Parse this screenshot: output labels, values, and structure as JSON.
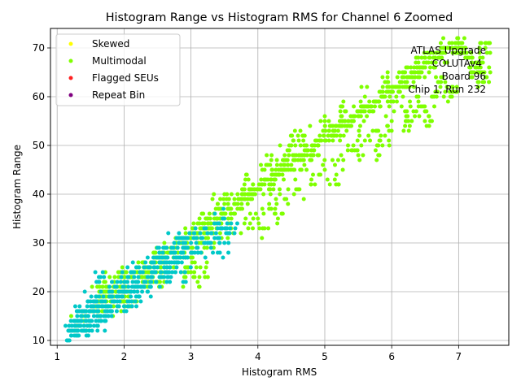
{
  "chart_data": {
    "type": "scatter",
    "title": "Histogram Range vs Histogram RMS for Channel 6 Zoomed",
    "xlabel": "Histogram RMS",
    "ylabel": "Histogram Range",
    "xlim": [
      0.9,
      7.75
    ],
    "ylim": [
      9,
      74
    ],
    "xticks": [
      1,
      2,
      3,
      4,
      5,
      6,
      7
    ],
    "yticks": [
      10,
      20,
      30,
      40,
      50,
      60,
      70
    ],
    "grid": true,
    "legend_position": "top-left",
    "annotation": [
      "ATLAS Upgrade",
      "COLUTAv4",
      "Board 96",
      "Chip 1, Run 232"
    ],
    "series": [
      {
        "name": "Skewed",
        "color": "#ffff00",
        "marker_size": 2.5,
        "points": []
      },
      {
        "name": "Multimodal",
        "color": "#7fff00",
        "marker_size": 2.5,
        "points": [
          [
            1.3,
            13
          ],
          [
            1.4,
            14
          ],
          [
            1.5,
            16
          ],
          [
            1.55,
            17
          ],
          [
            1.6,
            18
          ],
          [
            1.65,
            19
          ],
          [
            1.7,
            19
          ],
          [
            1.75,
            20
          ],
          [
            1.8,
            20
          ],
          [
            1.85,
            21
          ],
          [
            1.9,
            21
          ],
          [
            1.95,
            21
          ],
          [
            2.0,
            22
          ],
          [
            2.05,
            22
          ],
          [
            2.1,
            23
          ],
          [
            2.15,
            23
          ],
          [
            2.2,
            24
          ],
          [
            2.25,
            24
          ],
          [
            2.3,
            25
          ],
          [
            2.35,
            25
          ],
          [
            2.4,
            26
          ],
          [
            2.45,
            26
          ],
          [
            2.5,
            27
          ],
          [
            2.55,
            27
          ],
          [
            2.6,
            27
          ],
          [
            2.65,
            28
          ],
          [
            2.7,
            28
          ],
          [
            2.75,
            29
          ],
          [
            2.8,
            29
          ],
          [
            2.85,
            30
          ],
          [
            2.9,
            30
          ],
          [
            2.95,
            31
          ],
          [
            3.0,
            31
          ],
          [
            3.05,
            32
          ],
          [
            3.1,
            32
          ],
          [
            3.15,
            33
          ],
          [
            3.2,
            33
          ],
          [
            3.25,
            34
          ],
          [
            3.3,
            34
          ],
          [
            3.35,
            35
          ],
          [
            3.4,
            35
          ],
          [
            3.45,
            36
          ],
          [
            3.5,
            36
          ],
          [
            3.55,
            37
          ],
          [
            3.6,
            37
          ],
          [
            3.65,
            38
          ],
          [
            3.7,
            38
          ],
          [
            3.75,
            39
          ],
          [
            3.8,
            39
          ],
          [
            3.85,
            40
          ],
          [
            3.9,
            40
          ],
          [
            3.95,
            41
          ],
          [
            4.0,
            41
          ],
          [
            4.05,
            42
          ],
          [
            4.1,
            42
          ],
          [
            4.15,
            43
          ],
          [
            4.2,
            43
          ],
          [
            4.25,
            44
          ],
          [
            4.3,
            44
          ],
          [
            4.35,
            45
          ],
          [
            4.4,
            45
          ],
          [
            4.45,
            46
          ],
          [
            4.5,
            46
          ],
          [
            4.55,
            47
          ],
          [
            4.6,
            47
          ],
          [
            4.65,
            48
          ],
          [
            4.7,
            48
          ],
          [
            4.75,
            49
          ],
          [
            4.8,
            49
          ],
          [
            4.85,
            50
          ],
          [
            4.9,
            50
          ],
          [
            4.95,
            51
          ],
          [
            5.0,
            51
          ],
          [
            5.05,
            52
          ],
          [
            5.1,
            52
          ],
          [
            5.15,
            53
          ],
          [
            5.2,
            53
          ],
          [
            5.25,
            54
          ],
          [
            5.3,
            54
          ],
          [
            5.35,
            55
          ],
          [
            5.4,
            55
          ],
          [
            5.45,
            56
          ],
          [
            5.5,
            56
          ],
          [
            5.55,
            57
          ],
          [
            5.6,
            57
          ],
          [
            5.65,
            58
          ],
          [
            5.7,
            58
          ],
          [
            5.75,
            59
          ],
          [
            5.8,
            59
          ],
          [
            5.85,
            60
          ],
          [
            5.9,
            60
          ],
          [
            5.95,
            61
          ],
          [
            6.0,
            61
          ],
          [
            6.05,
            62
          ],
          [
            6.1,
            62
          ],
          [
            6.15,
            63
          ],
          [
            6.2,
            63
          ],
          [
            6.25,
            64
          ],
          [
            6.3,
            64
          ],
          [
            6.35,
            65
          ],
          [
            6.4,
            65
          ],
          [
            6.45,
            66
          ],
          [
            6.5,
            66
          ],
          [
            6.55,
            67
          ],
          [
            6.6,
            67
          ],
          [
            6.65,
            68
          ],
          [
            6.7,
            68
          ],
          [
            6.75,
            69
          ],
          [
            6.8,
            69
          ],
          [
            6.85,
            70
          ],
          [
            6.9,
            70
          ],
          [
            6.95,
            71
          ],
          [
            7.0,
            71
          ],
          [
            7.05,
            70
          ],
          [
            7.1,
            69
          ],
          [
            7.15,
            68
          ],
          [
            7.2,
            67
          ],
          [
            7.25,
            66
          ],
          [
            7.3,
            66
          ],
          [
            7.35,
            65
          ],
          [
            7.4,
            64
          ],
          [
            7.4,
            70
          ],
          [
            7.4,
            71
          ],
          [
            6.9,
            62
          ],
          [
            6.8,
            61
          ],
          [
            6.6,
            60
          ],
          [
            6.4,
            59
          ],
          [
            6.2,
            57
          ],
          [
            6.0,
            55
          ],
          [
            5.8,
            53
          ],
          [
            5.6,
            51
          ],
          [
            5.4,
            49
          ],
          [
            5.2,
            47
          ],
          [
            5.0,
            45
          ],
          [
            4.8,
            43
          ],
          [
            4.6,
            41
          ],
          [
            4.4,
            39
          ],
          [
            4.2,
            37
          ],
          [
            4.0,
            35
          ],
          [
            3.8,
            34
          ],
          [
            3.6,
            33
          ],
          [
            3.4,
            31
          ],
          [
            3.2,
            29
          ],
          [
            3.0,
            27
          ],
          [
            2.8,
            26
          ],
          [
            2.6,
            25
          ],
          [
            2.4,
            23
          ],
          [
            2.2,
            22
          ],
          [
            2.0,
            20
          ],
          [
            1.8,
            18
          ],
          [
            1.6,
            17
          ],
          [
            4.1,
            33
          ],
          [
            4.3,
            35
          ],
          [
            3.4,
            38
          ],
          [
            3.8,
            42
          ],
          [
            4.6,
            52
          ],
          [
            5.25,
            56
          ],
          [
            5.15,
            43
          ],
          [
            5.8,
            48
          ],
          [
            6.2,
            54
          ],
          [
            6.9,
            60
          ],
          [
            3.1,
            22
          ],
          [
            3.2,
            24
          ],
          [
            2.9,
            23
          ],
          [
            2.6,
            22
          ],
          [
            2.3,
            21
          ],
          [
            1.9,
            17
          ],
          [
            1.55,
            16
          ],
          [
            1.6,
            21
          ],
          [
            1.7,
            22
          ],
          [
            2.0,
            18
          ],
          [
            2.1,
            17
          ],
          [
            2.5,
            22
          ],
          [
            3.0,
            24
          ],
          [
            3.1,
            34
          ],
          [
            4.2,
            47
          ],
          [
            4.5,
            50
          ],
          [
            5.5,
            48
          ],
          [
            5.9,
            52
          ],
          [
            6.3,
            55
          ],
          [
            6.5,
            57
          ],
          [
            6.6,
            55
          ],
          [
            6.7,
            63
          ],
          [
            7.2,
            65
          ],
          [
            7.3,
            63
          ],
          [
            6.2,
            65
          ],
          [
            6.4,
            67
          ],
          [
            5.9,
            63
          ],
          [
            5.6,
            60
          ],
          [
            5.3,
            57
          ],
          [
            5.0,
            55
          ],
          [
            4.7,
            52
          ],
          [
            4.4,
            48
          ],
          [
            4.1,
            45
          ],
          [
            3.8,
            41
          ],
          [
            3.5,
            38
          ],
          [
            3.2,
            34
          ],
          [
            2.9,
            31
          ],
          [
            2.6,
            28
          ],
          [
            2.3,
            26
          ],
          [
            2.0,
            23
          ],
          [
            1.7,
            20
          ]
        ]
      },
      {
        "name": "Flagged SEUs",
        "color": "#ff2020",
        "marker_size": 2.5,
        "points": []
      },
      {
        "name": "Repeat Bin",
        "color": "#800080",
        "marker_size": 2.5,
        "points": []
      },
      {
        "name": "",
        "color": "#00c8c8",
        "marker_size": 2.5,
        "points": [
          [
            1.2,
            12
          ],
          [
            1.22,
            13
          ],
          [
            1.25,
            14
          ],
          [
            1.28,
            12
          ],
          [
            1.3,
            15
          ],
          [
            1.32,
            13
          ],
          [
            1.35,
            14
          ],
          [
            1.38,
            16
          ],
          [
            1.4,
            12
          ],
          [
            1.42,
            15
          ],
          [
            1.45,
            13
          ],
          [
            1.48,
            16
          ],
          [
            1.5,
            14
          ],
          [
            1.52,
            17
          ],
          [
            1.55,
            15
          ],
          [
            1.58,
            18
          ],
          [
            1.6,
            16
          ],
          [
            1.62,
            17
          ],
          [
            1.65,
            14
          ],
          [
            1.68,
            18
          ],
          [
            1.7,
            15
          ],
          [
            1.72,
            17
          ],
          [
            1.75,
            16
          ],
          [
            1.78,
            19
          ],
          [
            1.8,
            17
          ],
          [
            1.82,
            20
          ],
          [
            1.85,
            18
          ],
          [
            1.88,
            21
          ],
          [
            1.9,
            19
          ],
          [
            1.92,
            20
          ],
          [
            1.95,
            22
          ],
          [
            1.98,
            19
          ],
          [
            2.0,
            21
          ],
          [
            2.02,
            20
          ],
          [
            2.05,
            22
          ],
          [
            2.08,
            18
          ],
          [
            2.1,
            24
          ],
          [
            2.12,
            21
          ],
          [
            2.15,
            23
          ],
          [
            2.18,
            19
          ],
          [
            2.2,
            22
          ],
          [
            2.22,
            25
          ],
          [
            2.25,
            21
          ],
          [
            2.28,
            24
          ],
          [
            2.3,
            22
          ],
          [
            2.32,
            26
          ],
          [
            2.35,
            23
          ],
          [
            2.38,
            25
          ],
          [
            2.4,
            21
          ],
          [
            2.42,
            24
          ],
          [
            2.45,
            26
          ],
          [
            2.48,
            22
          ],
          [
            2.5,
            25
          ],
          [
            2.52,
            27
          ],
          [
            2.55,
            24
          ],
          [
            2.58,
            28
          ],
          [
            2.6,
            25
          ],
          [
            2.62,
            27
          ],
          [
            2.65,
            23
          ],
          [
            2.68,
            26
          ],
          [
            2.7,
            28
          ],
          [
            2.72,
            24
          ],
          [
            2.75,
            30
          ],
          [
            2.78,
            27
          ],
          [
            2.8,
            29
          ],
          [
            2.82,
            31
          ],
          [
            2.85,
            28
          ],
          [
            2.88,
            30
          ],
          [
            2.9,
            29
          ],
          [
            2.92,
            27
          ],
          [
            2.95,
            31
          ],
          [
            3.0,
            30
          ],
          [
            3.05,
            32
          ],
          [
            3.1,
            29
          ],
          [
            3.15,
            31
          ],
          [
            3.2,
            33
          ],
          [
            3.25,
            30
          ],
          [
            3.3,
            32
          ],
          [
            3.35,
            34
          ],
          [
            3.4,
            31
          ],
          [
            3.45,
            33
          ],
          [
            3.5,
            35
          ],
          [
            3.55,
            32
          ],
          [
            3.6,
            34
          ],
          [
            3.65,
            32
          ],
          [
            1.65,
            23
          ],
          [
            1.7,
            23
          ],
          [
            1.58,
            19
          ],
          [
            1.5,
            18
          ],
          [
            1.45,
            17
          ],
          [
            1.35,
            13
          ],
          [
            1.25,
            12
          ],
          [
            1.3,
            14
          ],
          [
            1.4,
            13
          ],
          [
            2.1,
            20
          ],
          [
            2.2,
            20
          ],
          [
            2.3,
            21
          ],
          [
            2.35,
            20
          ],
          [
            2.45,
            24
          ],
          [
            2.55,
            23
          ],
          [
            2.6,
            26
          ],
          [
            2.7,
            23
          ],
          [
            2.75,
            26
          ],
          [
            2.85,
            24
          ],
          [
            2.95,
            27
          ],
          [
            3.0,
            28
          ],
          [
            3.3,
            29
          ],
          [
            3.5,
            30
          ],
          [
            3.4,
            28
          ],
          [
            1.9,
            18
          ],
          [
            1.8,
            16
          ],
          [
            2.0,
            17
          ],
          [
            2.1,
            19
          ],
          [
            1.6,
            15
          ],
          [
            1.72,
            14
          ],
          [
            1.22,
            12
          ],
          [
            1.33,
            16
          ],
          [
            1.28,
            13
          ],
          [
            1.55,
            13
          ]
        ]
      }
    ]
  }
}
